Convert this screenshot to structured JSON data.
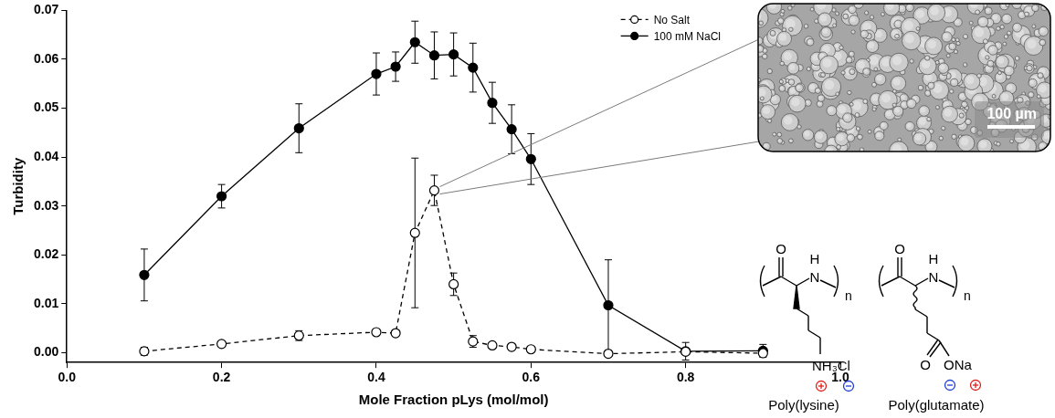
{
  "chart_data": {
    "type": "line",
    "x_label": "Mole Fraction pLys (mol/mol)",
    "y_label": "Turbidity",
    "x": [
      0.1,
      0.2,
      0.3,
      0.4,
      0.425,
      0.45,
      0.475,
      0.5,
      0.525,
      0.55,
      0.575,
      0.6,
      0.7,
      0.8,
      0.9
    ],
    "series": [
      {
        "name": "No Salt",
        "color": "#000000",
        "marker": "circle_open",
        "line_style": "dashed",
        "values": [
          0.0003,
          0.0018,
          0.0035,
          0.0042,
          0.004,
          0.0245,
          0.0332,
          0.014,
          0.0023,
          0.0015,
          0.0012,
          0.0007,
          -0.0002,
          0.0002,
          -0.0001
        ],
        "errors": [
          0.0008,
          0.0005,
          0.001,
          0.0006,
          0.0006,
          0.0153,
          0.0031,
          0.0023,
          0.0012,
          0.0005,
          0.0005,
          0.0005,
          0.0004,
          0.0004,
          0.0004
        ]
      },
      {
        "name": "100 mM NaCl",
        "color": "#000000",
        "marker": "circle",
        "line_style": "solid",
        "values": [
          0.0159,
          0.032,
          0.0459,
          0.057,
          0.0585,
          0.0635,
          0.0608,
          0.061,
          0.0583,
          0.0511,
          0.0457,
          0.0396,
          0.0097,
          0.0003,
          0.0004
        ],
        "errors": [
          0.0053,
          0.0024,
          0.005,
          0.0043,
          0.003,
          0.0043,
          0.0048,
          0.0044,
          0.005,
          0.0042,
          0.005,
          0.0052,
          0.0093,
          0.0018,
          0.0013
        ]
      }
    ],
    "xlim": [
      0,
      1
    ],
    "xticks": [
      {
        "value": 0,
        "label": "0.0"
      },
      0.2,
      0.4,
      0.6,
      0.8,
      {
        "value": 1,
        "label": "1.0"
      }
    ],
    "ylim": [
      -0.002,
      0.07
    ],
    "yticks": [
      {
        "value": 0,
        "label": "0.00"
      },
      0.01,
      0.02,
      0.03,
      0.04,
      0.05,
      0.06,
      0.07
    ],
    "grid": false,
    "legend": "upper right"
  },
  "inset": {
    "scale_bar": "100 µm"
  },
  "structures": [
    {
      "name": "Poly(lysine)",
      "labels": [
        "O",
        "H",
        "N",
        "n",
        "NH₃Cl"
      ]
    },
    {
      "name": "Poly(glutamate)",
      "labels": [
        "O",
        "H",
        "N",
        "n",
        "O",
        "ONa"
      ]
    }
  ]
}
